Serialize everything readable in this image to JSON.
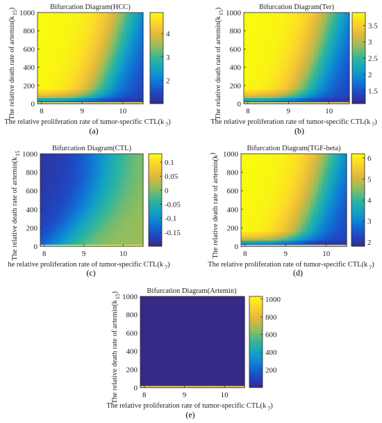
{
  "colors": {
    "background": "#ffffff",
    "parula": [
      "#352a87",
      "#1e49c6",
      "#0f7ad6",
      "#12a2c4",
      "#31b69b",
      "#8fbd5f",
      "#dcb83e",
      "#fcd02f",
      "#f9fb0e"
    ],
    "baseline_strip": "#f5e356"
  },
  "chart_data": [
    {
      "type": "heatmap",
      "panel_label": "(a)",
      "title": "Bifurcation Diagram(HCC)",
      "xlabel": "The relative proliferation rate of tumor-specific CTL(k",
      "xlabel_sub": "7",
      "xlabel_close": ")",
      "ylabel": "The relative death rate of artemin(k",
      "ylabel_sub": "15",
      "ylabel_close": ")",
      "xlim": [
        7.9,
        10.5
      ],
      "ylim": [
        0,
        1000
      ],
      "xticks": [
        8,
        9,
        10
      ],
      "yticks": [
        0,
        200,
        400,
        600,
        800,
        1000
      ],
      "colorbar": {
        "range": [
          1.0,
          4.9
        ],
        "ticks": [
          2,
          3,
          4
        ],
        "ticklabels": [
          "2",
          "3",
          "4"
        ]
      },
      "pattern": "high_left",
      "value_min": 1.0,
      "value_max": 4.9
    },
    {
      "type": "heatmap",
      "panel_label": "(b)",
      "title": "Bifurcation Diagram(Ter)",
      "xlabel": "The relative proliferation rate of tumor-specific CTL(k",
      "xlabel_sub": "7",
      "xlabel_close": ")",
      "ylabel": "The relative death rate of artemin(k",
      "ylabel_sub": "15",
      "ylabel_close": ")",
      "xlim": [
        7.9,
        10.5
      ],
      "ylim": [
        0,
        1000
      ],
      "xticks": [
        8,
        9,
        10
      ],
      "yticks": [
        0,
        200,
        400,
        600,
        800,
        1000
      ],
      "colorbar": {
        "range": [
          1.1,
          3.9
        ],
        "ticks": [
          1.5,
          2,
          2.5,
          3,
          3.5
        ],
        "ticklabels": [
          "1.5",
          "2",
          "2.5",
          "3",
          "3.5"
        ]
      },
      "pattern": "high_left",
      "value_min": 1.1,
      "value_max": 3.9
    },
    {
      "type": "heatmap",
      "panel_label": "(c)",
      "title": "Bifurcation Diagram(CTL)",
      "xlabel": "he relative proliferation rate of tumor-specific CTL(k",
      "xlabel_sub": "7",
      "xlabel_close": ")",
      "ylabel": "The relative death rate of artemin(k",
      "ylabel_sub": "15",
      "ylabel_close": "",
      "xlim": [
        7.9,
        10.5
      ],
      "ylim": [
        0,
        1000
      ],
      "xticks": [
        8,
        9,
        10
      ],
      "yticks": [
        0,
        200,
        400,
        600,
        800,
        1000
      ],
      "colorbar": {
        "range": [
          -0.2,
          0.13
        ],
        "ticks": [
          -0.15,
          -0.1,
          -0.05,
          0,
          0.05,
          0.1
        ],
        "ticklabels": [
          "-0.15",
          "-0.1",
          "-0.05",
          "0",
          "0.05",
          "0.1"
        ]
      },
      "pattern": "high_right",
      "value_min": -0.2,
      "value_max": 0.13
    },
    {
      "type": "heatmap",
      "panel_label": "(d)",
      "title": "Bifurcation Diagram(TGF-beta)",
      "xlabel": "The relative proliferation rate of tumor-specific CTL(k",
      "xlabel_sub": "7",
      "xlabel_close": ")",
      "ylabel": "The relative death rate of artemin(k",
      "ylabel_sub": "",
      "ylabel_close": ")",
      "xlim": [
        7.9,
        10.5
      ],
      "ylim": [
        0,
        1000
      ],
      "xticks": [
        8,
        9,
        10
      ],
      "yticks": [
        0,
        200,
        400,
        600,
        800,
        1000
      ],
      "colorbar": {
        "range": [
          1.8,
          6.2
        ],
        "ticks": [
          2,
          3,
          4,
          5,
          6
        ],
        "ticklabels": [
          "2",
          "3",
          "4",
          "5",
          "6"
        ]
      },
      "pattern": "high_left",
      "value_min": 1.8,
      "value_max": 6.2
    },
    {
      "type": "heatmap",
      "panel_label": "(e)",
      "title": "Bifurcation Diagram(Artemin)",
      "xlabel": "The relative proliferation rate of tumor-specific CTL(k",
      "xlabel_sub": "7",
      "xlabel_close": ")",
      "ylabel": "The relative death rate of artemin(k",
      "ylabel_sub": "15",
      "ylabel_close": ")",
      "xlim": [
        7.9,
        10.5
      ],
      "ylim": [
        0,
        1000
      ],
      "xticks": [
        8,
        9,
        10
      ],
      "yticks": [
        0,
        200,
        400,
        600,
        800,
        1000
      ],
      "colorbar": {
        "range": [
          0,
          1030
        ],
        "ticks": [
          200,
          400,
          600,
          800,
          1000
        ],
        "ticklabels": [
          "200",
          "400",
          "600",
          "800",
          "1000"
        ]
      },
      "pattern": "flat_low",
      "value_min": 0,
      "value_max": 1030
    }
  ]
}
